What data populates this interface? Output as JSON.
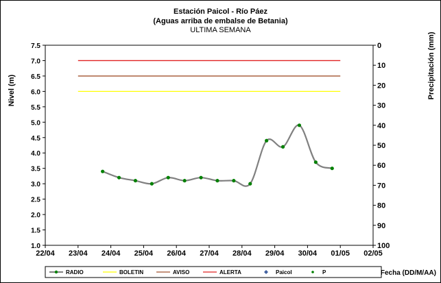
{
  "chart_data": {
    "type": "line",
    "title": "Estación Paicol  - Río Páez",
    "subtitle": "(Aguas arriba de embalse de Betania)",
    "subtitle2": "ULTIMA SEMANA",
    "ylabel_left": "Nivel (m)",
    "ylabel_right": "Precipitación (mm)",
    "xlabel": "Fecha  (DD/M/AA)",
    "x_ticks": [
      "22/04",
      "23/04",
      "24/04",
      "25/04",
      "26/04",
      "27/04",
      "28/04",
      "29/04",
      "30/04",
      "01/05",
      "02/05"
    ],
    "x_range": [
      "22/04",
      "02/05"
    ],
    "ylim_left": [
      1.0,
      7.5
    ],
    "y_ticks_left": [
      "1.0",
      "1.5",
      "2.0",
      "2.5",
      "3.0",
      "3.5",
      "4.0",
      "4.5",
      "5.0",
      "5.5",
      "6.0",
      "6.5",
      "7.0",
      "7.5"
    ],
    "ylim_right": [
      100,
      0
    ],
    "y_ticks_right": [
      "0",
      "10",
      "20",
      "30",
      "40",
      "50",
      "60",
      "70",
      "80",
      "90",
      "100"
    ],
    "grid": false,
    "legend_position": "bottom",
    "series": [
      {
        "name": "RADIO",
        "color": "#808080",
        "marker_color": "#008000",
        "points": [
          {
            "x": "23/04 18:00",
            "y": 3.4
          },
          {
            "x": "24/04 06:00",
            "y": 3.2
          },
          {
            "x": "24/04 18:00",
            "y": 3.1
          },
          {
            "x": "25/04 06:00",
            "y": 3.0
          },
          {
            "x": "25/04 18:00",
            "y": 3.2
          },
          {
            "x": "26/04 06:00",
            "y": 3.1
          },
          {
            "x": "26/04 18:00",
            "y": 3.2
          },
          {
            "x": "27/04 06:00",
            "y": 3.1
          },
          {
            "x": "27/04 18:00",
            "y": 3.1
          },
          {
            "x": "28/04 06:00",
            "y": 3.0
          },
          {
            "x": "28/04 18:00",
            "y": 4.4
          },
          {
            "x": "29/04 06:00",
            "y": 4.2
          },
          {
            "x": "29/04 18:00",
            "y": 4.9
          },
          {
            "x": "30/04 06:00",
            "y": 3.7
          },
          {
            "x": "30/04 18:00",
            "y": 3.5
          }
        ]
      },
      {
        "name": "BOLETIN",
        "color": "#ffff00",
        "y": 6.0,
        "x_start": "23/04",
        "x_end": "01/05"
      },
      {
        "name": "AVISO",
        "color": "#a0522d",
        "y": 6.5,
        "x_start": "23/04",
        "x_end": "01/05"
      },
      {
        "name": "ALERTA",
        "color": "#e02020",
        "y": 7.0,
        "x_start": "23/04",
        "x_end": "01/05"
      },
      {
        "name": "Paicol",
        "color": "#4060a0",
        "points": []
      },
      {
        "name": "P",
        "color": "#008000",
        "points": []
      }
    ]
  }
}
